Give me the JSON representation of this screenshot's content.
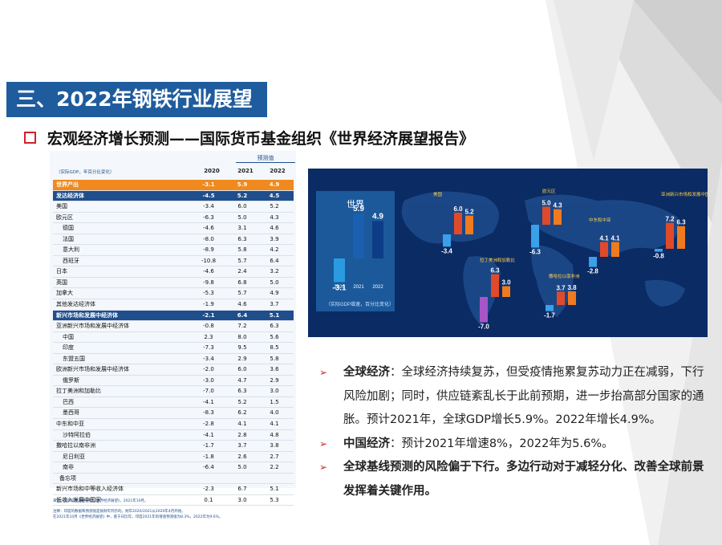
{
  "slide": {
    "title": "三、2022年钢铁行业展望",
    "subtitle": "宏观经济增长预测——国际货币基金组织《世界经济展望报告》"
  },
  "table": {
    "projection_note": "预测值",
    "unit_label": "（实际GDP，年百分比变化）",
    "years": [
      "2020",
      "2021",
      "2022"
    ],
    "rows": [
      {
        "name": "世界产出",
        "v": [
          "-3.1",
          "5.9",
          "4.9"
        ],
        "style": "orange"
      },
      {
        "name": "发达经济体",
        "v": [
          "-4.5",
          "5.2",
          "4.5"
        ],
        "style": "blue"
      },
      {
        "name": "美国",
        "v": [
          "-3.4",
          "6.0",
          "5.2"
        ],
        "style": ""
      },
      {
        "name": "欧元区",
        "v": [
          "-6.3",
          "5.0",
          "4.3"
        ],
        "style": ""
      },
      {
        "name": "德国",
        "v": [
          "-4.6",
          "3.1",
          "4.6"
        ],
        "style": "sub"
      },
      {
        "name": "法国",
        "v": [
          "-8.0",
          "6.3",
          "3.9"
        ],
        "style": "sub"
      },
      {
        "name": "意大利",
        "v": [
          "-8.9",
          "5.8",
          "4.2"
        ],
        "style": "sub"
      },
      {
        "name": "西班牙",
        "v": [
          "-10.8",
          "5.7",
          "6.4"
        ],
        "style": "sub"
      },
      {
        "name": "日本",
        "v": [
          "-4.6",
          "2.4",
          "3.2"
        ],
        "style": ""
      },
      {
        "name": "英国",
        "v": [
          "-9.8",
          "6.8",
          "5.0"
        ],
        "style": ""
      },
      {
        "name": "加拿大",
        "v": [
          "-5.3",
          "5.7",
          "4.9"
        ],
        "style": ""
      },
      {
        "name": "其他发达经济体",
        "v": [
          "-1.9",
          "4.6",
          "3.7"
        ],
        "style": ""
      },
      {
        "name": "新兴市场和发展中经济体",
        "v": [
          "-2.1",
          "6.4",
          "5.1"
        ],
        "style": "blue"
      },
      {
        "name": "亚洲新兴市场和发展中经济体",
        "v": [
          "-0.8",
          "7.2",
          "6.3"
        ],
        "style": ""
      },
      {
        "name": "中国",
        "v": [
          "2.3",
          "8.0",
          "5.6"
        ],
        "style": "sub"
      },
      {
        "name": "印度",
        "v": [
          "-7.3",
          "9.5",
          "8.5"
        ],
        "style": "sub"
      },
      {
        "name": "东盟五国",
        "v": [
          "-3.4",
          "2.9",
          "5.8"
        ],
        "style": "sub"
      },
      {
        "name": "欧洲新兴市场和发展中经济体",
        "v": [
          "-2.0",
          "6.0",
          "3.6"
        ],
        "style": ""
      },
      {
        "name": "俄罗斯",
        "v": [
          "-3.0",
          "4.7",
          "2.9"
        ],
        "style": "sub"
      },
      {
        "name": "拉丁美洲和加勒比",
        "v": [
          "-7.0",
          "6.3",
          "3.0"
        ],
        "style": ""
      },
      {
        "name": "巴西",
        "v": [
          "-4.1",
          "5.2",
          "1.5"
        ],
        "style": "sub"
      },
      {
        "name": "墨西哥",
        "v": [
          "-8.3",
          "6.2",
          "4.0"
        ],
        "style": "sub"
      },
      {
        "name": "中东和中亚",
        "v": [
          "-2.8",
          "4.1",
          "4.1"
        ],
        "style": ""
      },
      {
        "name": "沙特阿拉伯",
        "v": [
          "-4.1",
          "2.8",
          "4.8"
        ],
        "style": "sub"
      },
      {
        "name": "撒哈拉以南非洲",
        "v": [
          "-1.7",
          "3.7",
          "3.8"
        ],
        "style": ""
      },
      {
        "name": "尼日利亚",
        "v": [
          "-1.8",
          "2.6",
          "2.7"
        ],
        "style": "sub"
      },
      {
        "name": "南非",
        "v": [
          "-6.4",
          "5.0",
          "2.2"
        ],
        "style": "sub"
      },
      {
        "name": "备忘项",
        "v": [
          "",
          "",
          ""
        ],
        "style": "sub2"
      },
      {
        "name": "新兴市场和中等收入经济体",
        "v": [
          "-2.3",
          "6.7",
          "5.1"
        ],
        "style": ""
      },
      {
        "name": "低收入发展中国家",
        "v": [
          "0.1",
          "3.0",
          "5.3"
        ],
        "style": ""
      }
    ],
    "source": "来源：国际货币基金组织《世界经济展望》，2021年10月。",
    "note_line1": "注释：印度的数据和预测值是按财年列示的。财年2020/2021从2020年4月开始。",
    "note_line2": "在2021年10月《世界经济展望》中，基于日历年，印度2021年的增速预测值为8.3%，2022年为9.6%。"
  },
  "map_panel": {
    "world_label": "世界",
    "world_values": [
      "-3.1",
      "5.9",
      "4.9"
    ],
    "world_years": [
      "2020",
      "2021",
      "2022"
    ],
    "footnote": "（实际GDP增速，百分比变化）",
    "regions": [
      {
        "name": "美国",
        "values": [
          "-3.4",
          "6.0",
          "5.2"
        ]
      },
      {
        "name": "欧元区",
        "values": [
          "-6.3",
          "5.0",
          "4.3"
        ]
      },
      {
        "name": "亚洲新兴市场和发展中国家",
        "values": [
          "-0.8",
          "7.2",
          "6.3"
        ]
      },
      {
        "name": "中东和中亚",
        "values": [
          "-2.8",
          "4.1",
          "4.1"
        ]
      },
      {
        "name": "拉丁美洲和加勒比",
        "values": [
          "-7.0",
          "6.3",
          "3.0"
        ]
      },
      {
        "name": "撒哈拉以南非洲",
        "values": [
          "-1.7",
          "3.7",
          "3.8"
        ]
      }
    ],
    "colors": {
      "y2020": "#f0a020",
      "y2021": "#e04a2a",
      "y2022": "#f07a1e"
    }
  },
  "bullets": [
    {
      "head": "全球经济",
      "text": "：全球经济持续复苏，但受疫情拖累复苏动力正在减弱，下行风险加剧；同时，供应链紊乱长于此前预期，进一步抬高部分国家的通胀。预计2021年，全球GDP增长5.9%。2022年增长4.9%。"
    },
    {
      "head": "中国经济",
      "text": "：预计2021年增速8%，2022年为5.6%。"
    },
    {
      "head": "全球基线预测的风险偏于下行。多边行动对于减轻分化、改善全球前景发挥着关键作用。",
      "text": ""
    }
  ]
}
